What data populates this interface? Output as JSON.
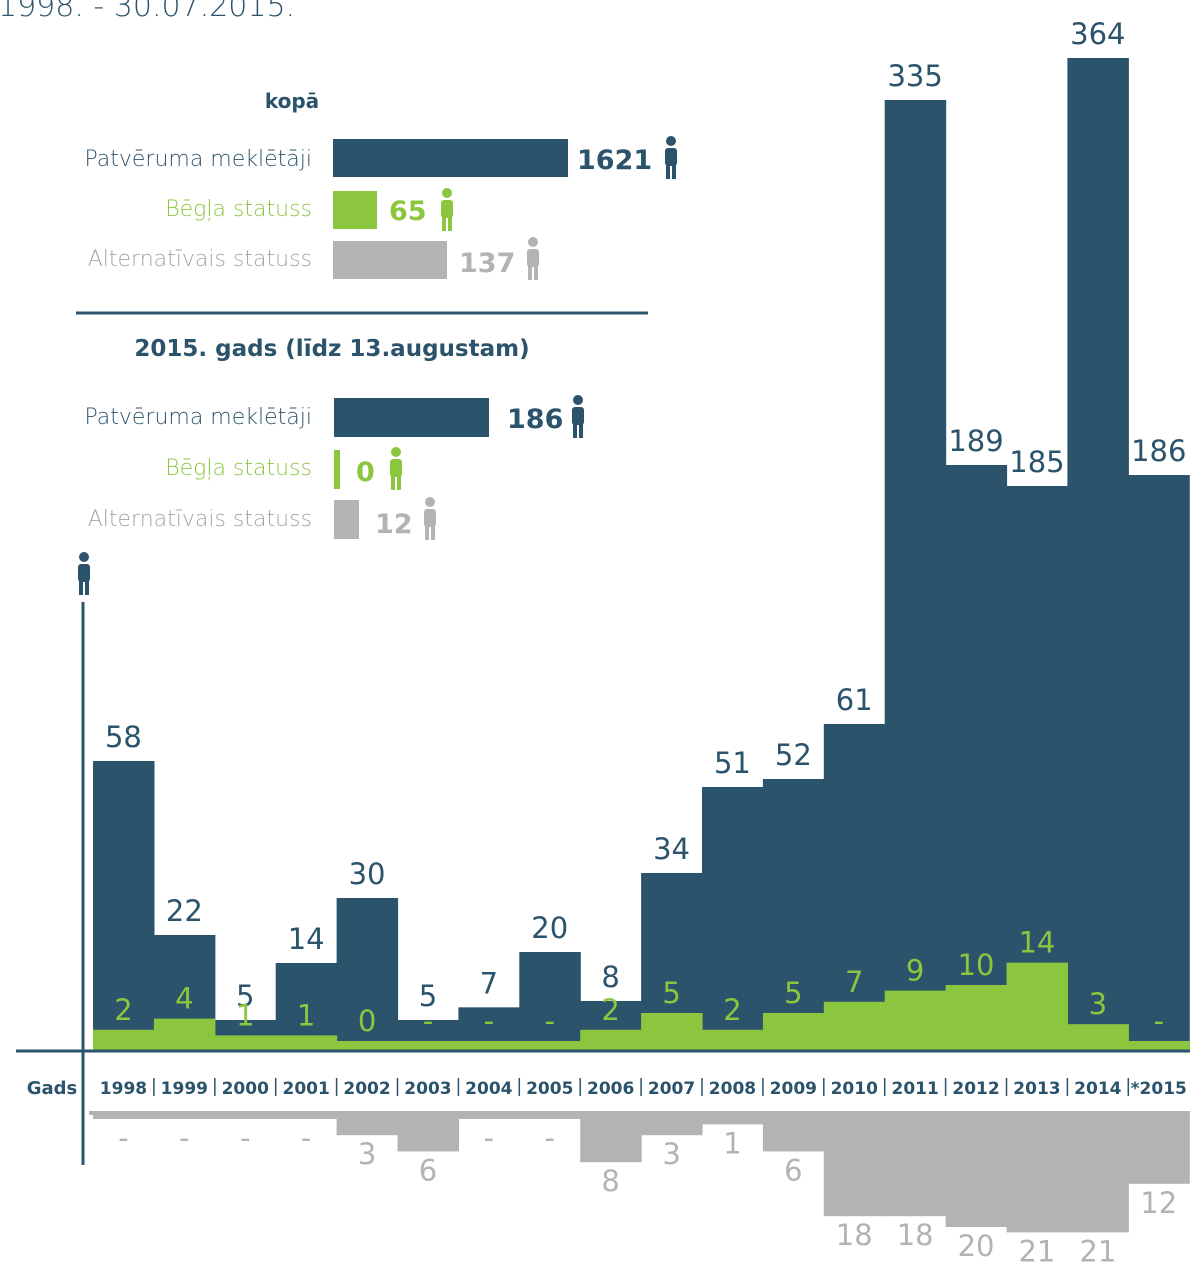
{
  "header": {
    "date_range": "1998. - 30.07.2015."
  },
  "summary_total": {
    "heading": "kopā",
    "rows": [
      {
        "label": "Patvēruma meklētāji",
        "value": "1621",
        "color": "#2b536b"
      },
      {
        "label": "Bēgļa statuss",
        "value": "65",
        "color": "#8cc63f"
      },
      {
        "label": "Alternatīvais statuss",
        "value": "137",
        "color": "#b3b3b4"
      }
    ]
  },
  "summary_2015": {
    "heading": "2015. gads (līdz 13.augustam)",
    "rows": [
      {
        "label": "Patvēruma meklētāji",
        "value": "186",
        "color": "#2b536b"
      },
      {
        "label": "Bēgļa statuss",
        "value": "0",
        "color": "#8cc63f"
      },
      {
        "label": "Alternatīvais statuss",
        "value": "12",
        "color": "#b3b3b4"
      }
    ]
  },
  "chart_data": {
    "type": "bar",
    "x_axis_label": "Gads",
    "categories": [
      "1998",
      "1999",
      "2000",
      "2001",
      "2002",
      "2003",
      "2004",
      "2005",
      "2006",
      "2007",
      "2008",
      "2009",
      "2010",
      "2011",
      "2012",
      "2013",
      "2014",
      "*2015"
    ],
    "series": [
      {
        "color": "#2b536b",
        "values": [
          58,
          22,
          5,
          14,
          30,
          5,
          7,
          20,
          8,
          34,
          51,
          52,
          61,
          335,
          189,
          185,
          364,
          186
        ],
        "labels": [
          "58",
          "22",
          "5",
          "14",
          "30",
          "5",
          "7",
          "20",
          "8",
          "34",
          "51",
          "52",
          "61",
          "335",
          "189",
          "185",
          "364",
          "186"
        ]
      },
      {
        "color": "#8cc63f",
        "values": [
          2,
          4,
          1,
          1,
          0,
          0,
          0,
          0,
          2,
          5,
          2,
          5,
          7,
          9,
          10,
          14,
          3,
          0
        ],
        "labels": [
          "2",
          "4",
          "1",
          "1",
          "0",
          "-",
          "-",
          "-",
          "2",
          "5",
          "2",
          "5",
          "7",
          "9",
          "10",
          "14",
          "3",
          "-"
        ]
      },
      {
        "color": "#b3b3b4",
        "values": [
          0,
          0,
          0,
          0,
          3,
          6,
          0,
          0,
          8,
          3,
          1,
          6,
          18,
          18,
          20,
          21,
          21,
          12
        ],
        "labels": [
          "-",
          "-",
          "-",
          "-",
          "3",
          "6",
          "-",
          "-",
          "8",
          "3",
          "1",
          "6",
          "18",
          "18",
          "20",
          "21",
          "21",
          "12"
        ]
      }
    ],
    "scale": "non-linear (values 30–364 compressed)"
  }
}
